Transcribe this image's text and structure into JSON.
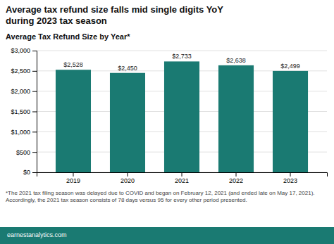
{
  "chart_data": {
    "type": "bar",
    "title": "Average tax refund size falls mid single digits YoY\nduring 2023 tax season",
    "subtitle": "Average Tax Refund Size by Year*",
    "annotations": [
      "*The 2021 tax filing season was delayed due to COVID and began on February 12, 2021 (and ended late on May 17, 2021). Accordingly, the 2021 tax season consists of 78 days versus 95 for every other period presented.",
      "earnestanalytics.com"
    ],
    "categories": [
      "2019",
      "2020",
      "2021",
      "2022",
      "2023"
    ],
    "values": [
      2528,
      2450,
      2733,
      2638,
      2499
    ],
    "value_labels": [
      "$2,528",
      "$2,450",
      "$2,733",
      "$2,638",
      "$2,499"
    ],
    "data_labels": true,
    "color": "#1a7a72",
    "ylim": [
      0,
      3000
    ],
    "yticks": [
      {
        "value": 0,
        "label": "$0"
      },
      {
        "value": 500,
        "label": "$500"
      },
      {
        "value": 1000,
        "label": "$1,000"
      },
      {
        "value": 1500,
        "label": "$1,500"
      },
      {
        "value": 2000,
        "label": "$2,000"
      },
      {
        "value": 2500,
        "label": "$2,500"
      },
      {
        "value": 3000,
        "label": "$3,000"
      }
    ],
    "grid": true
  }
}
